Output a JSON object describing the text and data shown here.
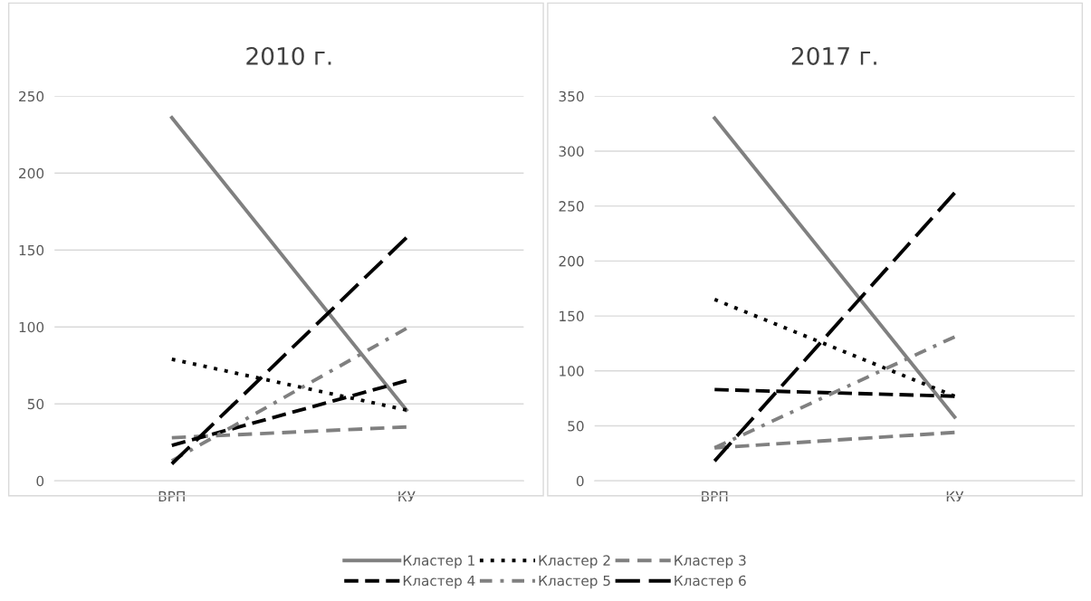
{
  "chart_data": [
    {
      "type": "line",
      "title": "2010 г.",
      "categories": [
        "ВРП",
        "КУ"
      ],
      "ylim": [
        0,
        250
      ],
      "yticks": [
        0,
        50,
        100,
        150,
        200,
        250
      ],
      "grid": "y",
      "legend": "bottom",
      "series": [
        {
          "name": "Кластер 1",
          "color": "#808080",
          "line_style": "solid",
          "values": [
            236,
            46
          ]
        },
        {
          "name": "Кластер 2",
          "color": "#000000",
          "line_style": "dotted",
          "values": [
            79,
            46
          ]
        },
        {
          "name": "Кластер 3",
          "color": "#808080",
          "line_style": "dashed",
          "values": [
            28,
            35
          ]
        },
        {
          "name": "Кластер 4",
          "color": "#000000",
          "line_style": "dashed",
          "values": [
            23,
            65
          ]
        },
        {
          "name": "Кластер 5",
          "color": "#808080",
          "line_style": "dashdot",
          "values": [
            13,
            99
          ]
        },
        {
          "name": "Кластер 6",
          "color": "#000000",
          "line_style": "longdash",
          "values": [
            11,
            158
          ]
        }
      ]
    },
    {
      "type": "line",
      "title": "2017 г.",
      "categories": [
        "ВРП",
        "КУ"
      ],
      "ylim": [
        0,
        350
      ],
      "yticks": [
        0,
        50,
        100,
        150,
        200,
        250,
        300,
        350
      ],
      "grid": "y",
      "series": [
        {
          "color": "#808080",
          "line_style": "solid",
          "values": [
            330,
            58
          ]
        },
        {
          "color": "#000000",
          "line_style": "dotted",
          "values": [
            165,
            77
          ]
        },
        {
          "color": "#808080",
          "line_style": "dashed",
          "values": [
            30,
            44
          ]
        },
        {
          "color": "#000000",
          "line_style": "dashed",
          "values": [
            83,
            77
          ]
        },
        {
          "color": "#808080",
          "line_style": "dashdot",
          "values": [
            30,
            131
          ]
        },
        {
          "color": "#000000",
          "line_style": "longdash",
          "values": [
            18,
            262
          ]
        }
      ]
    }
  ]
}
